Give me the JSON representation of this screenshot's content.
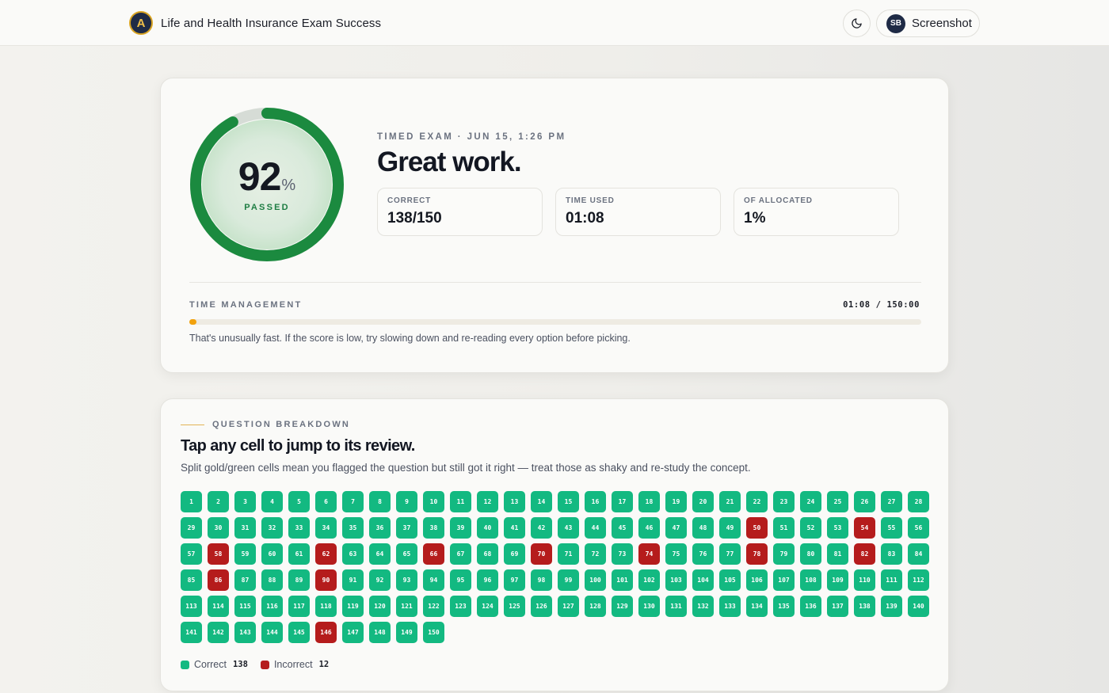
{
  "header": {
    "app_title": "Life and Health Insurance Exam Success",
    "logo_letter": "A",
    "theme_toggle_icon": "moon-icon",
    "user_initials": "SB",
    "user_name": "Screenshot"
  },
  "result": {
    "score": "92",
    "score_unit": "%",
    "score_fraction": 0.92,
    "status": "PASSED",
    "meta": "TIMED EXAM · JUN 15, 1:26 PM",
    "headline": "Great work.",
    "stats": [
      {
        "label": "CORRECT",
        "value": "138/150"
      },
      {
        "label": "TIME USED",
        "value": "01:08"
      },
      {
        "label": "OF ALLOCATED",
        "value": "1%"
      }
    ],
    "time_management": {
      "label": "TIME MANAGEMENT",
      "clock": "01:08 / 150:00",
      "fraction_used": 0.01,
      "note": "That's unusually fast. If the score is low, try slowing down and re-reading every option before picking."
    }
  },
  "breakdown": {
    "label": "QUESTION BREAKDOWN",
    "title": "Tap any cell to jump to its review.",
    "subtitle": "Split gold/green cells mean you flagged the question but still got it right — treat those as shaky and re-study the concept.",
    "total_questions": 150,
    "incorrect_questions": [
      50,
      54,
      58,
      62,
      66,
      70,
      74,
      78,
      82,
      86,
      90,
      146
    ],
    "legend": {
      "correct_label": "Correct",
      "correct_count": "138",
      "incorrect_label": "Incorrect",
      "incorrect_count": "12"
    }
  },
  "colors": {
    "correct": "#13b981",
    "incorrect": "#b51c1c",
    "ring_pass": "#1b8a3f",
    "ring_track": "#d6dcd6",
    "time_bar": "#f2a20d"
  }
}
